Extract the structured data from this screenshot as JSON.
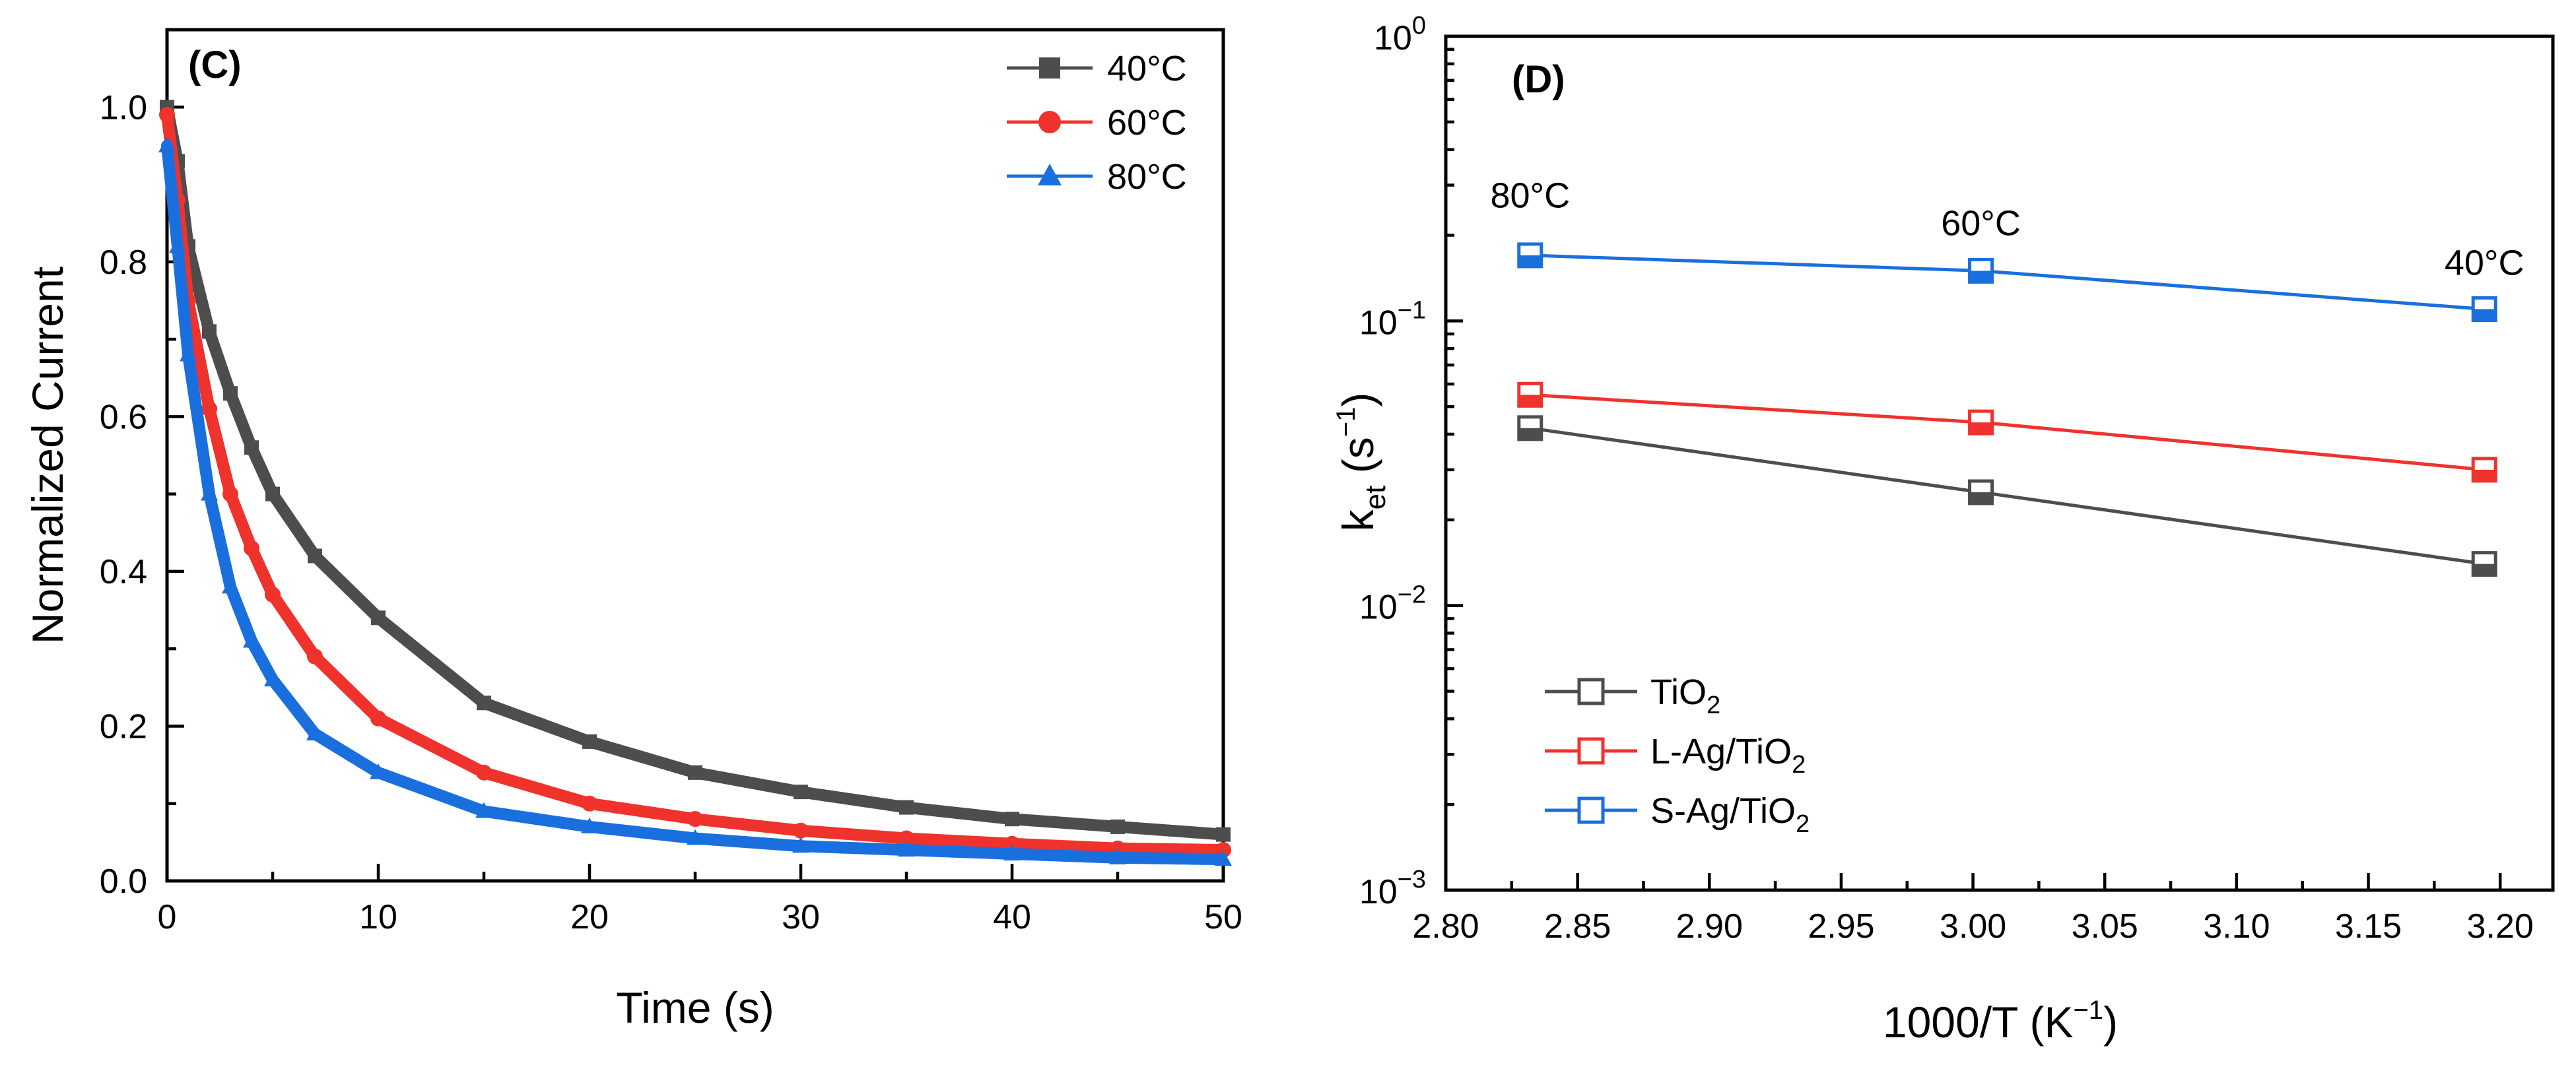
{
  "colors": {
    "black_series": "#4d4d4d",
    "red_series": "#f0322d",
    "blue_series": "#1a6fde",
    "axis": "#000000"
  },
  "chart_data": [
    {
      "type": "scatter",
      "panel_label": "(C)",
      "title": "",
      "xlabel": "Time (s)",
      "ylabel": "Normalized Current",
      "xlim": [
        0,
        50
      ],
      "ylim": [
        0,
        1.1
      ],
      "xticks": [
        0,
        10,
        20,
        30,
        40,
        50
      ],
      "xtick_labels": [
        "0",
        "10",
        "20",
        "30",
        "40",
        "50"
      ],
      "yticks": [
        0,
        0.2,
        0.4,
        0.6,
        0.8,
        1.0
      ],
      "ytick_labels": [
        "0.0",
        "0.2",
        "0.4",
        "0.6",
        "0.8",
        "1.0"
      ],
      "legend_position": "top-right",
      "series": [
        {
          "name": "40°C",
          "marker": "square",
          "color": "#4d4d4d",
          "x": [
            0,
            0.5,
            1,
            2,
            3,
            4,
            5,
            7,
            10,
            15,
            20,
            25,
            30,
            35,
            40,
            45,
            50
          ],
          "y": [
            1.0,
            0.93,
            0.82,
            0.71,
            0.63,
            0.56,
            0.5,
            0.42,
            0.34,
            0.23,
            0.18,
            0.14,
            0.115,
            0.095,
            0.08,
            0.07,
            0.06
          ]
        },
        {
          "name": "60°C",
          "marker": "circle",
          "color": "#f0322d",
          "x": [
            0,
            0.5,
            1,
            2,
            3,
            4,
            5,
            7,
            10,
            15,
            20,
            25,
            30,
            35,
            40,
            45,
            50
          ],
          "y": [
            0.99,
            0.88,
            0.75,
            0.61,
            0.5,
            0.43,
            0.37,
            0.29,
            0.21,
            0.14,
            0.1,
            0.08,
            0.065,
            0.055,
            0.048,
            0.042,
            0.04
          ]
        },
        {
          "name": "80°C",
          "marker": "triangle",
          "color": "#1a6fde",
          "x": [
            0,
            0.5,
            1,
            2,
            3,
            4,
            5,
            7,
            10,
            15,
            20,
            25,
            30,
            35,
            40,
            45,
            50
          ],
          "y": [
            0.95,
            0.82,
            0.68,
            0.5,
            0.38,
            0.31,
            0.26,
            0.19,
            0.14,
            0.09,
            0.07,
            0.055,
            0.045,
            0.04,
            0.035,
            0.03,
            0.028
          ]
        }
      ]
    },
    {
      "type": "line",
      "panel_label": "(D)",
      "title": "",
      "xlabel": "1000/T (K−1)",
      "xlabel_main": "1000/T (K",
      "xlabel_sup": "−1",
      "xlabel_tail": ")",
      "ylabel_main": "k",
      "ylabel_sub": "et",
      "ylabel_mid": " (s",
      "ylabel_sup": "−1",
      "ylabel_tail": ")",
      "xlim": [
        2.8,
        3.22
      ],
      "ylim": [
        0.001,
        1
      ],
      "yscale": "log",
      "xticks": [
        2.8,
        2.85,
        2.9,
        2.95,
        3.0,
        3.05,
        3.1,
        3.15,
        3.2
      ],
      "xtick_labels": [
        "2.80",
        "2.85",
        "2.90",
        "2.95",
        "3.00",
        "3.05",
        "3.10",
        "3.15",
        "3.20"
      ],
      "yticks": [
        0.001,
        0.01,
        0.1,
        1
      ],
      "ytick_base": "10",
      "ytick_exps": [
        "−3",
        "−2",
        "−1",
        "0"
      ],
      "legend_position": "bottom-left",
      "annotations": [
        {
          "text": "80°C",
          "x": 2.832,
          "y": 0.25
        },
        {
          "text": "60°C",
          "x": 3.003,
          "y": 0.2
        },
        {
          "text": "40°C",
          "x": 3.194,
          "y": 0.145
        }
      ],
      "series": [
        {
          "name": "TiO2",
          "label_main": "TiO",
          "label_sub": "2",
          "label_tail": "",
          "color": "#4d4d4d",
          "x": [
            2.832,
            3.003,
            3.194
          ],
          "y": [
            0.042,
            0.025,
            0.014
          ]
        },
        {
          "name": "L-Ag/TiO2",
          "label_main": "L-Ag/TiO",
          "label_sub": "2",
          "label_tail": "",
          "color": "#f0322d",
          "x": [
            2.832,
            3.003,
            3.194
          ],
          "y": [
            0.055,
            0.044,
            0.03
          ]
        },
        {
          "name": "S-Ag/TiO2",
          "label_main": "S-Ag/TiO",
          "label_sub": "2",
          "label_tail": "",
          "color": "#1a6fde",
          "x": [
            2.832,
            3.003,
            3.194
          ],
          "y": [
            0.17,
            0.15,
            0.11
          ]
        }
      ]
    }
  ]
}
